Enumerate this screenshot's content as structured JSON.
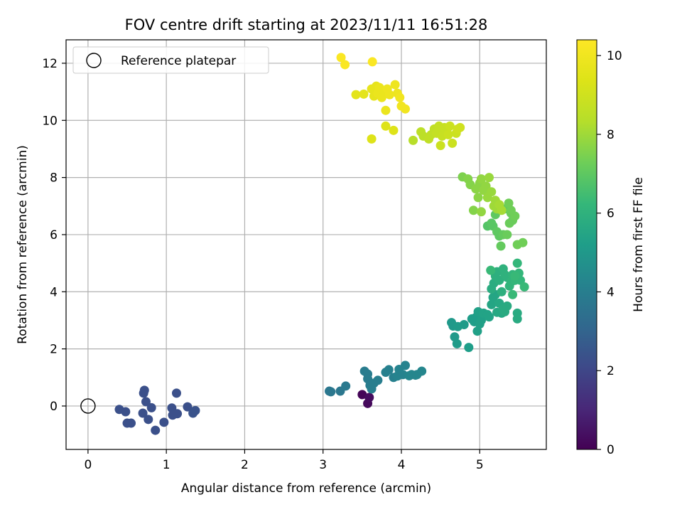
{
  "chart_data": {
    "type": "scatter",
    "title": "FOV centre drift starting at 2023/11/11 16:51:28",
    "xlabel": "Angular distance from reference (arcmin)",
    "ylabel": "Rotation from reference (arcmin)",
    "xlim": [
      -0.28,
      5.85
    ],
    "ylim": [
      -1.52,
      12.82
    ],
    "xticks": [
      0,
      1,
      2,
      3,
      4,
      5
    ],
    "yticks": [
      0,
      2,
      4,
      6,
      8,
      10,
      12
    ],
    "grid": true,
    "legend": {
      "placement": "top-left",
      "entries": [
        "Reference platepar"
      ]
    },
    "reference_point": {
      "x": 0,
      "y": 0,
      "label": "Reference platepar"
    },
    "colorbar": {
      "label": "Hours from first FF file",
      "range": [
        0,
        10.4
      ],
      "ticks": [
        0,
        2,
        4,
        6,
        8,
        10
      ],
      "colormap": "viridis"
    },
    "series": [
      {
        "points": [
          [
            3.5,
            0.4,
            0.1
          ],
          [
            3.57,
            0.09,
            0.2
          ],
          [
            3.59,
            0.3,
            0.3
          ],
          [
            0.4,
            -0.12,
            2.3
          ],
          [
            0.48,
            -0.2,
            2.3
          ],
          [
            0.5,
            -0.6,
            2.3
          ],
          [
            0.55,
            -0.6,
            2.3
          ],
          [
            0.7,
            -0.25,
            2.3
          ],
          [
            0.71,
            0.45,
            2.3
          ],
          [
            0.72,
            0.55,
            2.3
          ],
          [
            0.74,
            0.15,
            2.3
          ],
          [
            0.77,
            -0.47,
            2.3
          ],
          [
            0.81,
            -0.06,
            2.3
          ],
          [
            0.86,
            -0.85,
            2.3
          ],
          [
            0.97,
            -0.57,
            2.3
          ],
          [
            1.07,
            -0.07,
            2.3
          ],
          [
            1.08,
            -0.32,
            2.3
          ],
          [
            1.13,
            0.45,
            2.3
          ],
          [
            1.14,
            -0.27,
            2.3
          ],
          [
            1.27,
            -0.03,
            2.3
          ],
          [
            1.34,
            -0.25,
            2.4
          ],
          [
            1.37,
            -0.16,
            2.4
          ],
          [
            3.08,
            0.52,
            3.7
          ],
          [
            3.1,
            0.5,
            3.7
          ],
          [
            3.22,
            0.52,
            3.7
          ],
          [
            3.29,
            0.7,
            3.8
          ],
          [
            3.53,
            1.22,
            3.9
          ],
          [
            3.57,
            1.12,
            3.9
          ],
          [
            3.57,
            0.95,
            3.9
          ],
          [
            3.6,
            0.72,
            3.9
          ],
          [
            3.62,
            0.6,
            4.0
          ],
          [
            3.65,
            0.8,
            4.0
          ],
          [
            3.7,
            0.9,
            4.0
          ],
          [
            3.8,
            1.18,
            4.1
          ],
          [
            3.84,
            1.27,
            4.1
          ],
          [
            3.9,
            1.0,
            4.1
          ],
          [
            3.95,
            1.05,
            4.2
          ],
          [
            3.97,
            1.28,
            4.2
          ],
          [
            4.02,
            1.1,
            4.2
          ],
          [
            4.05,
            1.42,
            4.2
          ],
          [
            4.1,
            1.06,
            4.3
          ],
          [
            4.13,
            1.1,
            4.3
          ],
          [
            4.18,
            1.08,
            4.3
          ],
          [
            4.2,
            1.1,
            4.3
          ],
          [
            4.26,
            1.22,
            4.3
          ],
          [
            4.64,
            2.92,
            5.0
          ],
          [
            4.66,
            2.8,
            5.0
          ],
          [
            4.68,
            2.42,
            5.0
          ],
          [
            4.71,
            2.18,
            5.1
          ],
          [
            4.72,
            2.78,
            5.1
          ],
          [
            4.8,
            2.85,
            5.1
          ],
          [
            4.86,
            2.05,
            5.2
          ],
          [
            4.9,
            3.05,
            5.2
          ],
          [
            4.93,
            2.95,
            5.2
          ],
          [
            4.95,
            3.1,
            5.2
          ],
          [
            4.97,
            2.62,
            5.3
          ],
          [
            4.98,
            3.3,
            5.3
          ],
          [
            5.0,
            2.87,
            5.3
          ],
          [
            5.02,
            3.0,
            5.3
          ],
          [
            5.05,
            3.25,
            5.4
          ],
          [
            5.1,
            3.2,
            5.4
          ],
          [
            5.12,
            3.12,
            5.4
          ],
          [
            5.15,
            3.55,
            5.5
          ],
          [
            5.17,
            3.8,
            5.5
          ],
          [
            5.2,
            3.9,
            5.5
          ],
          [
            5.22,
            3.28,
            5.6
          ],
          [
            5.25,
            3.6,
            5.6
          ],
          [
            5.28,
            3.25,
            5.6
          ],
          [
            5.3,
            3.4,
            5.7
          ],
          [
            5.32,
            3.3,
            5.7
          ],
          [
            5.35,
            3.5,
            5.7
          ],
          [
            5.48,
            3.05,
            5.7
          ],
          [
            5.48,
            3.25,
            5.7
          ],
          [
            5.15,
            4.1,
            5.8
          ],
          [
            5.18,
            4.3,
            5.8
          ],
          [
            5.2,
            4.55,
            5.9
          ],
          [
            5.22,
            4.7,
            5.9
          ],
          [
            5.25,
            4.4,
            5.9
          ],
          [
            5.28,
            4.0,
            5.9
          ],
          [
            5.3,
            4.8,
            6.0
          ],
          [
            5.32,
            4.6,
            6.0
          ],
          [
            5.35,
            4.5,
            6.0
          ],
          [
            5.38,
            4.2,
            6.1
          ],
          [
            5.4,
            4.35,
            6.1
          ],
          [
            5.42,
            4.6,
            6.1
          ],
          [
            5.45,
            4.4,
            6.2
          ],
          [
            5.48,
            5.0,
            6.2
          ],
          [
            5.5,
            4.65,
            6.2
          ],
          [
            5.52,
            4.4,
            6.2
          ],
          [
            5.57,
            4.17,
            6.3
          ],
          [
            5.14,
            4.75,
            6.3
          ],
          [
            5.42,
            3.9,
            6.3
          ],
          [
            5.45,
            4.55,
            6.3
          ],
          [
            5.1,
            6.3,
            6.8
          ],
          [
            5.15,
            6.4,
            6.9
          ],
          [
            5.17,
            6.3,
            6.9
          ],
          [
            5.2,
            6.7,
            7.0
          ],
          [
            5.22,
            6.1,
            7.0
          ],
          [
            5.25,
            5.95,
            7.0
          ],
          [
            5.27,
            5.6,
            7.1
          ],
          [
            5.3,
            6.0,
            7.1
          ],
          [
            5.32,
            6.9,
            7.1
          ],
          [
            5.35,
            6.0,
            7.2
          ],
          [
            5.38,
            6.4,
            7.2
          ],
          [
            5.4,
            6.75,
            7.2
          ],
          [
            5.42,
            6.5,
            7.2
          ],
          [
            5.45,
            6.65,
            7.3
          ],
          [
            5.48,
            5.65,
            7.3
          ],
          [
            5.55,
            5.72,
            7.3
          ],
          [
            5.37,
            7.1,
            7.3
          ],
          [
            5.4,
            6.85,
            7.3
          ],
          [
            4.78,
            8.02,
            7.5
          ],
          [
            4.85,
            7.95,
            7.6
          ],
          [
            4.88,
            7.75,
            7.6
          ],
          [
            4.92,
            6.85,
            7.6
          ],
          [
            4.95,
            7.6,
            7.7
          ],
          [
            4.98,
            7.3,
            7.7
          ],
          [
            5.0,
            7.8,
            7.7
          ],
          [
            5.02,
            7.95,
            7.8
          ],
          [
            5.05,
            7.55,
            7.8
          ],
          [
            5.08,
            7.7,
            7.8
          ],
          [
            5.1,
            7.3,
            7.9
          ],
          [
            5.12,
            8.0,
            7.9
          ],
          [
            5.15,
            7.5,
            7.9
          ],
          [
            5.18,
            7.0,
            8.0
          ],
          [
            5.2,
            7.2,
            8.0
          ],
          [
            5.22,
            6.9,
            8.0
          ],
          [
            5.25,
            7.05,
            8.1
          ],
          [
            5.28,
            6.85,
            8.1
          ],
          [
            5.02,
            6.8,
            7.8
          ],
          [
            4.15,
            9.3,
            8.4
          ],
          [
            4.25,
            9.6,
            8.5
          ],
          [
            4.28,
            9.45,
            8.5
          ],
          [
            4.35,
            9.35,
            8.6
          ],
          [
            4.38,
            9.5,
            8.6
          ],
          [
            4.42,
            9.7,
            8.6
          ],
          [
            4.45,
            9.55,
            8.7
          ],
          [
            4.48,
            9.8,
            8.7
          ],
          [
            4.5,
            9.6,
            8.7
          ],
          [
            4.52,
            9.45,
            8.8
          ],
          [
            4.55,
            9.75,
            8.8
          ],
          [
            4.58,
            9.65,
            8.8
          ],
          [
            4.6,
            9.5,
            8.9
          ],
          [
            4.62,
            9.8,
            8.9
          ],
          [
            4.65,
            9.2,
            8.9
          ],
          [
            4.7,
            9.55,
            8.9
          ],
          [
            4.72,
            9.7,
            9.0
          ],
          [
            4.75,
            9.75,
            9.0
          ],
          [
            4.5,
            9.12,
            8.9
          ],
          [
            3.62,
            9.35,
            9.4
          ],
          [
            3.8,
            9.8,
            9.4
          ],
          [
            3.9,
            9.65,
            9.4
          ],
          [
            3.42,
            10.9,
            9.6
          ],
          [
            3.52,
            10.92,
            9.6
          ],
          [
            3.62,
            11.1,
            9.7
          ],
          [
            3.65,
            10.85,
            9.7
          ],
          [
            3.68,
            11.2,
            9.7
          ],
          [
            3.7,
            10.95,
            9.8
          ],
          [
            3.72,
            11.15,
            9.8
          ],
          [
            3.75,
            10.8,
            9.8
          ],
          [
            3.78,
            11.05,
            9.8
          ],
          [
            3.8,
            10.35,
            9.8
          ],
          [
            3.82,
            11.1,
            9.9
          ],
          [
            3.85,
            10.9,
            9.9
          ],
          [
            3.92,
            11.25,
            9.9
          ],
          [
            3.95,
            10.95,
            9.9
          ],
          [
            3.98,
            10.8,
            10.0
          ],
          [
            4.0,
            10.5,
            10.0
          ],
          [
            4.05,
            10.4,
            10.0
          ],
          [
            3.23,
            12.2,
            10.3
          ],
          [
            3.28,
            11.95,
            10.3
          ],
          [
            3.63,
            12.05,
            10.3
          ]
        ]
      }
    ]
  }
}
